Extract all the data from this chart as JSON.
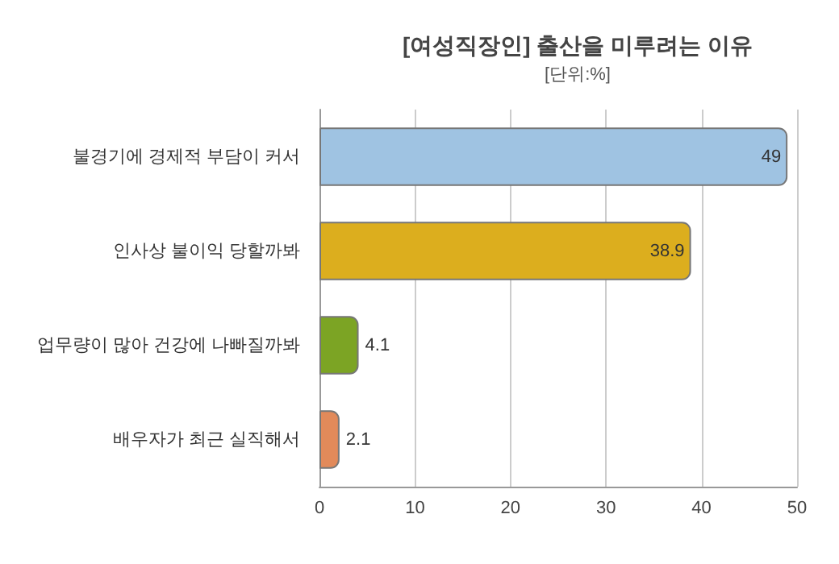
{
  "chart_data": {
    "type": "bar",
    "orientation": "horizontal",
    "title": "[여성직장인] 출산을 미루려는 이유",
    "subtitle": "[단위:%]",
    "categories": [
      "불경기에 경제적 부담이 커서",
      "인사상 불이익 당할까봐",
      "업무량이 많아 건강에 나빠질까봐",
      "배우자가 최근 실직해서"
    ],
    "values": [
      49,
      38.9,
      4.1,
      2.1
    ],
    "colors": [
      "#9fc3e2",
      "#dcae1e",
      "#7ca424",
      "#e28a5a"
    ],
    "xlim": [
      0,
      50
    ],
    "xticks": [
      0,
      10,
      20,
      30,
      40,
      50
    ],
    "grid": "x",
    "data_labels": true
  }
}
